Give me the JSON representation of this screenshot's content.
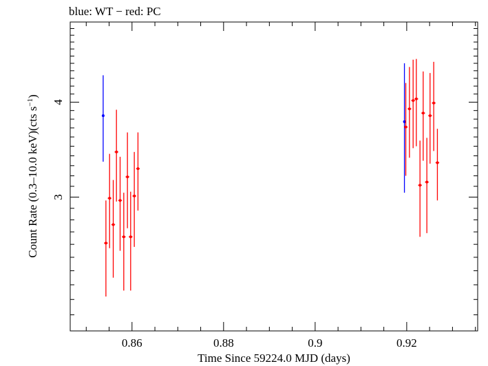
{
  "chart_data": {
    "type": "scatter",
    "title": "blue: WT − red: PC",
    "xlabel": "Time Since 59224.0 MJD (days)",
    "ylabel_main": "Count Rate (0.3–10.0 keV)(cts s",
    "ylabel_sup": "−1",
    "ylabel_close": ")",
    "xlim": [
      0.8465,
      0.9355
    ],
    "ylim": [
      2.0,
      5.1
    ],
    "y_log": true,
    "xticks": [
      0.86,
      0.88,
      0.9,
      0.92
    ],
    "xtick_labels": [
      "0.86",
      "0.88",
      "0.9",
      "0.92"
    ],
    "yticks": [
      3,
      4
    ],
    "ytick_labels": [
      "3",
      "4"
    ],
    "series": [
      {
        "color": "#0000ff",
        "points": [
          {
            "x": 0.8537,
            "y": 3.84,
            "ylo": 3.34,
            "yhi": 4.34,
            "xerr": 0.0
          },
          {
            "x": 0.9195,
            "y": 3.77,
            "ylo": 3.04,
            "yhi": 4.5,
            "xerr": 0.0
          }
        ]
      },
      {
        "color": "#ff0000",
        "points": [
          {
            "x": 0.8543,
            "y": 2.61,
            "ylo": 2.22,
            "yhi": 2.97,
            "xerr": 0.0004
          },
          {
            "x": 0.8551,
            "y": 2.99,
            "ylo": 2.57,
            "yhi": 3.42,
            "xerr": 0.0004
          },
          {
            "x": 0.8559,
            "y": 2.76,
            "ylo": 2.35,
            "yhi": 3.16,
            "xerr": 0.0004
          },
          {
            "x": 0.8566,
            "y": 3.44,
            "ylo": 2.96,
            "yhi": 3.91,
            "xerr": 0.0004
          },
          {
            "x": 0.8574,
            "y": 2.97,
            "ylo": 2.55,
            "yhi": 3.39,
            "xerr": 0.0004
          },
          {
            "x": 0.8582,
            "y": 2.66,
            "ylo": 2.26,
            "yhi": 3.04,
            "xerr": 0.0004
          },
          {
            "x": 0.859,
            "y": 3.19,
            "ylo": 2.73,
            "yhi": 3.65,
            "xerr": 0.0004
          },
          {
            "x": 0.8597,
            "y": 2.66,
            "ylo": 2.26,
            "yhi": 3.05,
            "xerr": 0.0004
          },
          {
            "x": 0.8605,
            "y": 3.01,
            "ylo": 2.58,
            "yhi": 3.44,
            "xerr": 0.0004
          },
          {
            "x": 0.8613,
            "y": 3.27,
            "ylo": 2.88,
            "yhi": 3.65,
            "xerr": 0.0004
          },
          {
            "x": 0.9198,
            "y": 3.71,
            "ylo": 3.2,
            "yhi": 4.24,
            "xerr": 0.0004
          },
          {
            "x": 0.9206,
            "y": 3.92,
            "ylo": 3.38,
            "yhi": 4.45,
            "xerr": 0.0004
          },
          {
            "x": 0.9214,
            "y": 4.02,
            "ylo": 3.48,
            "yhi": 4.55,
            "xerr": 0.0004
          },
          {
            "x": 0.9221,
            "y": 4.04,
            "ylo": 3.5,
            "yhi": 4.56,
            "xerr": 0.0004
          },
          {
            "x": 0.9229,
            "y": 3.11,
            "ylo": 2.66,
            "yhi": 3.56,
            "xerr": 0.0004
          },
          {
            "x": 0.9236,
            "y": 3.87,
            "ylo": 3.35,
            "yhi": 4.39,
            "xerr": 0.0004
          },
          {
            "x": 0.9244,
            "y": 3.14,
            "ylo": 2.69,
            "yhi": 3.59,
            "xerr": 0.0004
          },
          {
            "x": 0.9251,
            "y": 3.84,
            "ylo": 3.32,
            "yhi": 4.37,
            "xerr": 0.0004
          },
          {
            "x": 0.9259,
            "y": 3.99,
            "ylo": 3.45,
            "yhi": 4.52,
            "xerr": 0.0004
          },
          {
            "x": 0.9267,
            "y": 3.33,
            "ylo": 2.97,
            "yhi": 3.69,
            "xerr": 0.0004
          }
        ]
      }
    ]
  }
}
